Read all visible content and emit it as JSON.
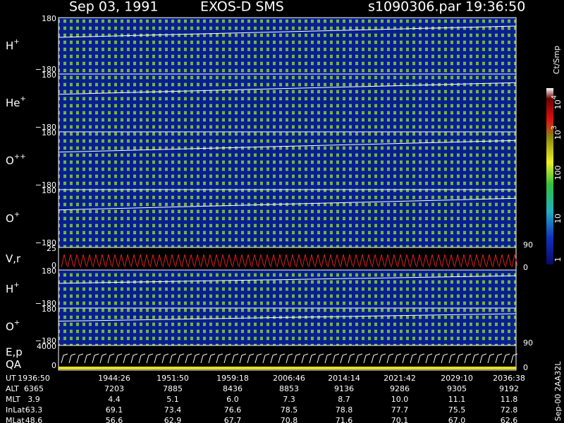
{
  "header": {
    "date": "Sep 03, 1991",
    "instrument": "EXOS-D SMS",
    "file": "s1090306.par",
    "time": "19:36:50"
  },
  "panels": [
    {
      "label": "H",
      "sup": "+",
      "ticks": [
        "180",
        "−180"
      ]
    },
    {
      "label": "He",
      "sup": "+",
      "ticks": [
        "180",
        "−180"
      ]
    },
    {
      "label": "O",
      "sup": "++",
      "ticks": [
        "180",
        "−180"
      ]
    },
    {
      "label": "O",
      "sup": "+",
      "ticks": [
        "180",
        "−180"
      ],
      "right_ticks": [
        "90"
      ]
    },
    {
      "label": "V,r",
      "ticks": [
        "25",
        "0"
      ],
      "right_ticks": [
        "0"
      ]
    },
    {
      "label": "H",
      "sup": "+",
      "ticks": [
        "180",
        "−180"
      ]
    },
    {
      "label": "O",
      "sup": "+",
      "ticks": [
        "180",
        "−180"
      ],
      "right_ticks": [
        "90"
      ]
    },
    {
      "label": "E,p",
      "label2": "QA",
      "ticks": [
        "4000",
        "0"
      ],
      "right_ticks": [
        "0"
      ]
    }
  ],
  "colorbar": {
    "unit": "Ct/Smp",
    "labels": [
      {
        "base": "10",
        "sup": "4"
      },
      {
        "base": "10",
        "sup": "3"
      },
      {
        "base": "100"
      },
      {
        "base": "10"
      },
      {
        "base": "1"
      }
    ]
  },
  "table": {
    "rows": [
      {
        "name": "UT",
        "values": [
          "1936:50",
          "1944:26",
          "1951:50",
          "1959:18",
          "2006:46",
          "2014:14",
          "2021:42",
          "2029:10",
          "2036:38"
        ]
      },
      {
        "name": "ALT",
        "values": [
          "6365",
          "7203",
          "7885",
          "8436",
          "8853",
          "9136",
          "9286",
          "9305",
          "9192"
        ]
      },
      {
        "name": "MLT",
        "values": [
          "3.9",
          "4.4",
          "5.1",
          "6.0",
          "7.3",
          "8.7",
          "10.0",
          "11.1",
          "11.8"
        ]
      },
      {
        "name": "InLat",
        "values": [
          "63.3",
          "69.1",
          "73.4",
          "76.6",
          "78.5",
          "78.8",
          "77.7",
          "75.5",
          "72.8"
        ]
      },
      {
        "name": "MLat",
        "values": [
          "48.6",
          "56.6",
          "62.9",
          "67.7",
          "70.8",
          "71.6",
          "70.1",
          "67.0",
          "62.6"
        ]
      }
    ]
  },
  "footer": "Sep-00 2AA32L"
}
